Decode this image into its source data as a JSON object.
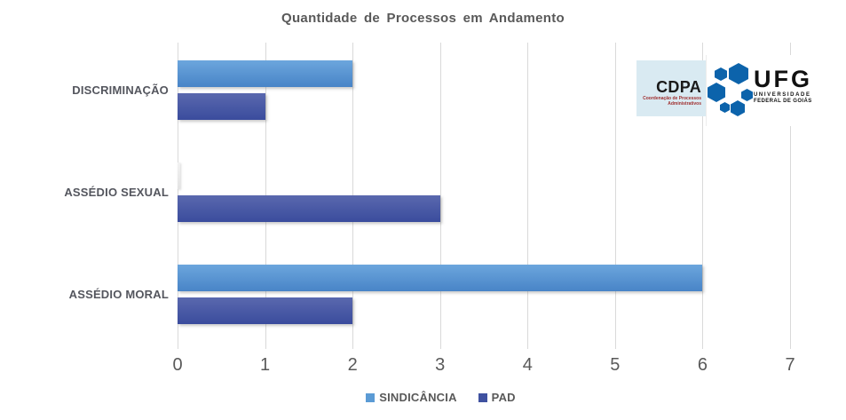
{
  "page": {
    "background": "#FFFFFF"
  },
  "chart_data": {
    "type": "bar",
    "orientation": "horizontal",
    "title": "Quantidade de Processos em Andamento",
    "categories": [
      "DISCRIMINAÇÃO",
      "ASSÉDIO SEXUAL",
      "ASSÉDIO MORAL"
    ],
    "series": [
      {
        "name": "SINDICÂNCIA",
        "color": "#5B9BD5",
        "gradient_top": "#6CA6DD",
        "gradient_bottom": "#4884C7",
        "values": [
          2,
          0,
          6
        ]
      },
      {
        "name": "PAD",
        "color": "#3F51A0",
        "gradient_top": "#5A68AE",
        "gradient_bottom": "#3A4C9D",
        "values": [
          1,
          3,
          2
        ]
      }
    ],
    "xlim": [
      0,
      7
    ],
    "xticks": [
      "0",
      "1",
      "2",
      "3",
      "4",
      "5",
      "6",
      "7"
    ],
    "grid": "vertical-only",
    "gridline_color": "#D9D9D9",
    "legend_position": "bottom",
    "title_color": "#595959",
    "axis_text_color": "#595959",
    "zero_bar_color": "#E3E3E3"
  },
  "logos": {
    "cdpa": {
      "abbr": "CDPA",
      "subtitle_line1": "Coordenação de Processos",
      "subtitle_line2": "Administrativos",
      "bg_color": "#D9EAF2",
      "subtitle_color": "#A03030"
    },
    "ufg": {
      "abbr": "UFG",
      "subtitle_line1": "UNIVERSIDADE",
      "subtitle_line2": "FEDERAL DE GOIÁS",
      "hex_color": "#0C63AB"
    }
  }
}
